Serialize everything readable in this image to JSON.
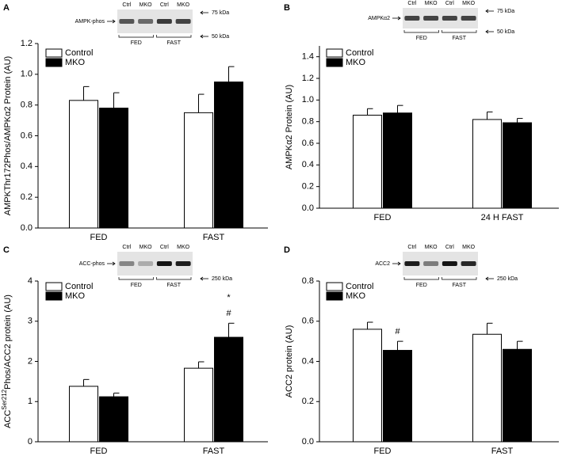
{
  "chart_data": [
    {
      "type": "bar",
      "panel": "A",
      "ylabel": [
        "AMPKThr172Phos/AMPKα2 Protein (AU)"
      ],
      "categories": [
        "FED",
        "FAST"
      ],
      "series": [
        {
          "name": "Control",
          "color": "#ffffff",
          "values": [
            0.83,
            0.75
          ],
          "errors": [
            0.09,
            0.12
          ]
        },
        {
          "name": "MKO",
          "color": "#000000",
          "values": [
            0.78,
            0.95
          ],
          "errors": [
            0.1,
            0.1
          ]
        }
      ],
      "ylim": [
        0,
        1.2
      ],
      "yticks": [
        {
          "value": 0,
          "label": "0.0"
        },
        0.2,
        0.4,
        0.6,
        0.8,
        {
          "value": 1,
          "label": "1.0"
        },
        1.2
      ],
      "annotations": [],
      "blot": {
        "label": "AMPK-phos",
        "lanes": [
          "Ctrl",
          "MKO",
          "Ctrl",
          "MKO"
        ],
        "groups": [
          "FED",
          "FAST"
        ],
        "markers": [
          "75 kDa",
          "50 kDa"
        ]
      }
    },
    {
      "type": "bar",
      "panel": "B",
      "ylabel": [
        "AMPKα2 Protein (AU)"
      ],
      "categories": [
        "FED",
        "24 H FAST"
      ],
      "series": [
        {
          "name": "Control",
          "color": "#ffffff",
          "values": [
            0.86,
            0.82
          ],
          "errors": [
            0.06,
            0.07
          ]
        },
        {
          "name": "MKO",
          "color": "#000000",
          "values": [
            0.88,
            0.79
          ],
          "errors": [
            0.07,
            0.04
          ]
        }
      ],
      "ylim": [
        0,
        1.5
      ],
      "yticks": [
        {
          "value": 0,
          "label": "0.0"
        },
        0.2,
        0.4,
        0.6,
        0.8,
        {
          "value": 1,
          "label": "1.0"
        },
        1.2,
        1.4
      ],
      "annotations": [],
      "blot": {
        "label": "AMPKα2",
        "lanes": [
          "Ctrl",
          "MKO",
          "Ctrl",
          "MKO"
        ],
        "groups": [
          "FED",
          "FAST"
        ],
        "markers": [
          "75 kDa",
          "50 kDa"
        ]
      }
    },
    {
      "type": "bar",
      "panel": "C",
      "ylabel": [
        "ACC",
        "Ser212",
        "Phos/ACC2 protein (AU)"
      ],
      "categories": [
        "FED",
        "FAST"
      ],
      "series": [
        {
          "name": "Control",
          "color": "#ffffff",
          "values": [
            1.38,
            1.83
          ],
          "errors": [
            0.17,
            0.16
          ]
        },
        {
          "name": "MKO",
          "color": "#000000",
          "values": [
            1.12,
            2.6
          ],
          "errors": [
            0.09,
            0.35
          ]
        }
      ],
      "ylim": [
        0,
        4
      ],
      "yticks": [
        0,
        1,
        2,
        3,
        4
      ],
      "annotations": [
        {
          "text": "#",
          "category": "FAST",
          "series": "MKO"
        },
        {
          "text": "*",
          "category": "FAST",
          "series": "MKO"
        }
      ],
      "blot": {
        "label": "ACC-phos",
        "lanes": [
          "Ctrl",
          "MKO",
          "Ctrl",
          "MKO"
        ],
        "groups": [
          "FED",
          "FAST"
        ],
        "markers": [
          "250 kDa"
        ]
      }
    },
    {
      "type": "bar",
      "panel": "D",
      "ylabel": [
        "ACC2 protein (AU)"
      ],
      "categories": [
        "FED",
        "FAST"
      ],
      "series": [
        {
          "name": "Control",
          "color": "#ffffff",
          "values": [
            0.56,
            0.535
          ],
          "errors": [
            0.035,
            0.055
          ]
        },
        {
          "name": "MKO",
          "color": "#000000",
          "values": [
            0.455,
            0.46
          ],
          "errors": [
            0.045,
            0.04
          ]
        }
      ],
      "ylim": [
        0,
        0.8
      ],
      "yticks": [
        {
          "value": 0,
          "label": "0.0"
        },
        0.2,
        0.4,
        0.6,
        0.8
      ],
      "annotations": [
        {
          "text": "#",
          "category": "FED",
          "series": "MKO"
        }
      ],
      "blot": {
        "label": "ACC2",
        "lanes": [
          "Ctrl",
          "MKO",
          "Ctrl",
          "MKO"
        ],
        "groups": [
          "FED",
          "FAST"
        ],
        "markers": [
          "250 kDa"
        ]
      }
    }
  ]
}
